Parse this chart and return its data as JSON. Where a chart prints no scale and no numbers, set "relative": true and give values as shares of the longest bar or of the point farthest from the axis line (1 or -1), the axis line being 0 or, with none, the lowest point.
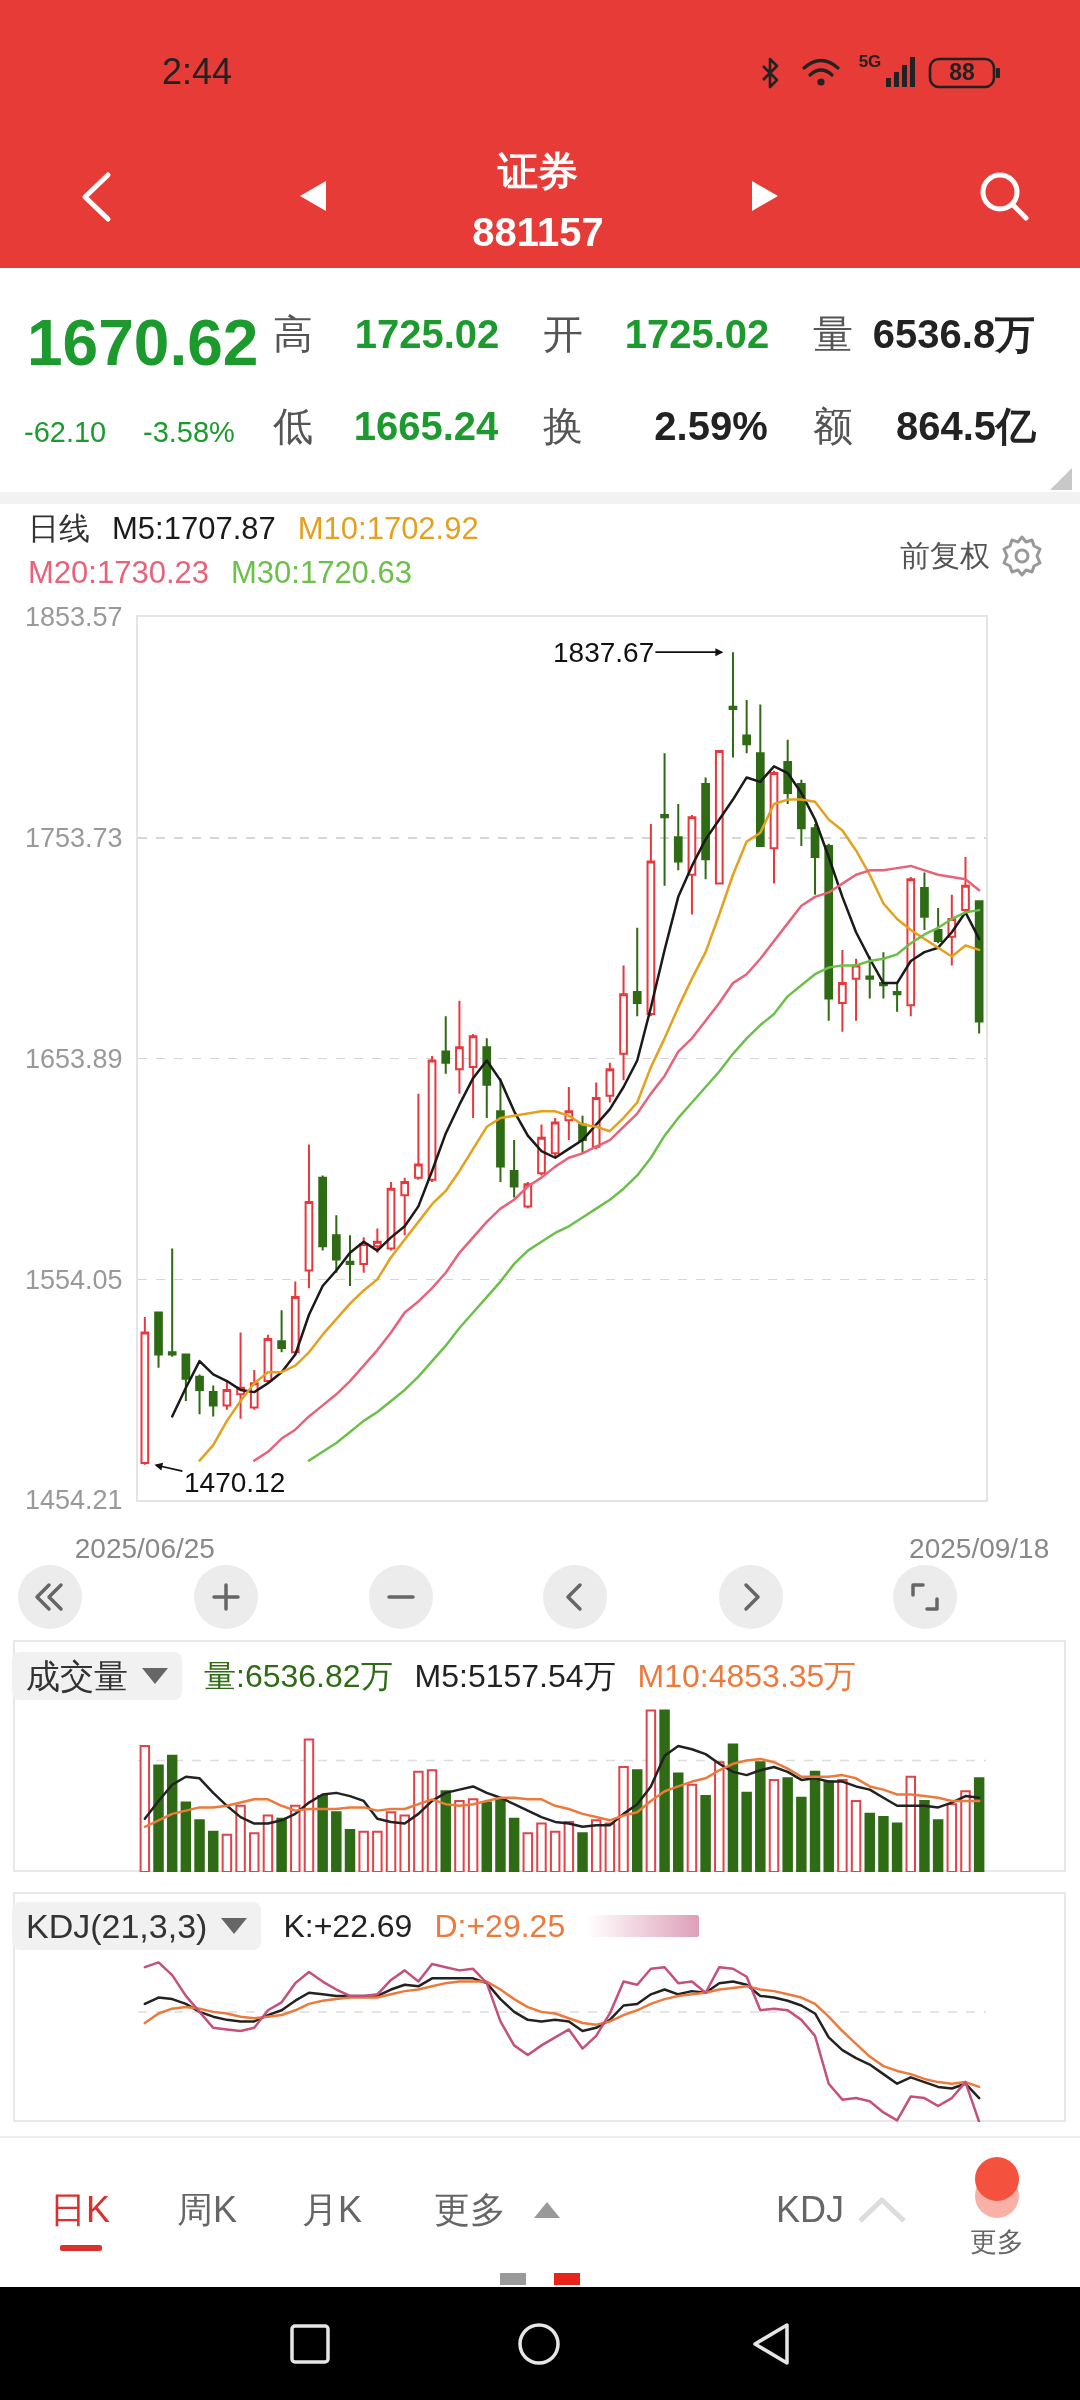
{
  "chart_data": [
    {
      "type": "other",
      "title": "证券",
      "subtitle": "881157",
      "annotations": [
        "2:44",
        "5G",
        "88",
        "1670.62",
        "-62.10",
        "-3.58%",
        "高",
        "1725.02",
        "开",
        "1725.02",
        "量",
        "6536.8万",
        "低",
        "1665.24",
        "换",
        "2.59%",
        "额",
        "864.5亿"
      ]
    },
    {
      "type": "candlestick",
      "legend_title": "日线",
      "legend": "top left",
      "grid": "y",
      "ylim": [
        1454.21,
        1853.57
      ],
      "yticks": [
        1454.21,
        1554.05,
        1653.89,
        1753.73,
        1853.57
      ],
      "categories": [
        "2025/06/25",
        null,
        null,
        null,
        null,
        null,
        null,
        null,
        null,
        null,
        null,
        null,
        null,
        null,
        null,
        null,
        null,
        null,
        null,
        null,
        null,
        null,
        null,
        null,
        null,
        null,
        null,
        null,
        null,
        null,
        null,
        null,
        null,
        null,
        null,
        null,
        null,
        null,
        null,
        null,
        null,
        null,
        null,
        null,
        null,
        null,
        null,
        null,
        null,
        null,
        null,
        null,
        null,
        null,
        null,
        null,
        null,
        null,
        null,
        null,
        null,
        "2025/09/18"
      ],
      "ohlc": [
        [
          1471,
          1537,
          1470.12,
          1530
        ],
        [
          1539,
          1539,
          1514,
          1520
        ],
        [
          1521,
          1568,
          1519,
          1520
        ],
        [
          1520,
          1520,
          1499,
          1509
        ],
        [
          1510,
          1511,
          1493,
          1504
        ],
        [
          1503,
          1506,
          1492,
          1497
        ],
        [
          1497,
          1508,
          1495,
          1504
        ],
        [
          1502,
          1530,
          1491,
          1505
        ],
        [
          1496,
          1513,
          1495,
          1507
        ],
        [
          1508,
          1529,
          1507,
          1527
        ],
        [
          1526,
          1540,
          1521,
          1523
        ],
        [
          1521,
          1553,
          1520,
          1546
        ],
        [
          1558,
          1615,
          1550,
          1589
        ],
        [
          1600,
          1601,
          1567,
          1569
        ],
        [
          1574,
          1583,
          1557,
          1563
        ],
        [
          1562,
          1574,
          1551,
          1561
        ],
        [
          1561,
          1573,
          1557,
          1570
        ],
        [
          1569,
          1577,
          1566,
          1571
        ],
        [
          1568,
          1598,
          1567,
          1595
        ],
        [
          1592,
          1600,
          1574,
          1598
        ],
        [
          1600,
          1638,
          1599,
          1606
        ],
        [
          1599,
          1655,
          1598,
          1653
        ],
        [
          1657,
          1673,
          1647,
          1652
        ],
        [
          1649,
          1680,
          1638,
          1659
        ],
        [
          1650,
          1665,
          1627,
          1664
        ],
        [
          1659,
          1663,
          1627,
          1642
        ],
        [
          1630,
          1645,
          1598,
          1605
        ],
        [
          1603,
          1617,
          1591,
          1596
        ],
        [
          1587,
          1598,
          1586,
          1597
        ],
        [
          1602,
          1624,
          1601,
          1618
        ],
        [
          1611,
          1627,
          1609,
          1625
        ],
        [
          1626,
          1641,
          1617,
          1630
        ],
        [
          1624,
          1628,
          1611,
          1617
        ],
        [
          1614,
          1643,
          1613,
          1636
        ],
        [
          1637,
          1652,
          1634,
          1649
        ],
        [
          1656,
          1696,
          1644,
          1683
        ],
        [
          1684,
          1713,
          1673,
          1679
        ],
        [
          1674,
          1760,
          1673,
          1743
        ],
        [
          1764,
          1792,
          1732,
          1763
        ],
        [
          1754,
          1769,
          1739,
          1743
        ],
        [
          1737,
          1764,
          1719,
          1763
        ],
        [
          1778,
          1781,
          1735,
          1744
        ],
        [
          1733,
          1793,
          1733,
          1793
        ],
        [
          1813,
          1837.67,
          1790,
          1812
        ],
        [
          1800,
          1816,
          1792,
          1796
        ],
        [
          1792,
          1814,
          1750,
          1750
        ],
        [
          1749,
          1784,
          1733,
          1783
        ],
        [
          1788,
          1798,
          1769,
          1774
        ],
        [
          1778,
          1780,
          1750,
          1758
        ],
        [
          1758,
          1760,
          1728,
          1745
        ],
        [
          1750,
          1751,
          1671,
          1681
        ],
        [
          1679,
          1703,
          1666,
          1688
        ],
        [
          1690,
          1699,
          1671,
          1696
        ],
        [
          1691,
          1700,
          1681,
          1690
        ],
        [
          1688,
          1702,
          1681,
          1687
        ],
        [
          1684,
          1688,
          1675,
          1683
        ],
        [
          1678,
          1736,
          1673,
          1735
        ],
        [
          1731,
          1738,
          1712,
          1718
        ],
        [
          1712,
          1722,
          1706,
          1707
        ],
        [
          1709,
          1728,
          1696,
          1717
        ],
        [
          1721,
          1745,
          1719,
          1732
        ],
        [
          1725.02,
          1725.02,
          1665.24,
          1670.62
        ]
      ],
      "colors": [
        "#e8383d",
        "#2e6b14",
        "#2e6b14",
        "#2e6b14",
        "#2e6b14",
        "#2e6b14",
        "#e8383d",
        "#e8383d",
        "#e8383d",
        "#e8383d",
        "#2e6b14",
        "#e8383d",
        "#e8383d",
        "#2e6b14",
        "#2e6b14",
        "#2e6b14",
        "#e8383d",
        "#e8383d",
        "#e8383d",
        "#e8383d",
        "#e8383d",
        "#e8383d",
        "#2e6b14",
        "#e8383d",
        "#e8383d",
        "#2e6b14",
        "#2e6b14",
        "#2e6b14",
        "#e8383d",
        "#e8383d",
        "#e8383d",
        "#e8383d",
        "#2e6b14",
        "#e8383d",
        "#e8383d",
        "#e8383d",
        "#2e6b14",
        "#e8383d",
        "#2e6b14",
        "#2e6b14",
        "#e8383d",
        "#2e6b14",
        "#e8383d",
        "#2e6b14",
        "#2e6b14",
        "#2e6b14",
        "#e8383d",
        "#2e6b14",
        "#2e6b14",
        "#2e6b14",
        "#2e6b14",
        "#e8383d",
        "#e8383d",
        "#2e6b14",
        "#2e6b14",
        "#2e6b14",
        "#e8383d",
        "#2e6b14",
        "#2e6b14",
        "#e8383d",
        "#e8383d",
        "#2e6b14"
      ],
      "series": [
        {
          "type": "line",
          "name": "M5:1707.87",
          "color": "#1a1a1a",
          "values": [
            null,
            null,
            1492,
            1505,
            1517,
            1511,
            1508,
            1504,
            1503,
            1507,
            1512,
            1520,
            1538,
            1551,
            1558,
            1566,
            1571,
            1567,
            1573,
            1578,
            1587,
            1603,
            1620,
            1633,
            1645,
            1653,
            1644,
            1630,
            1619,
            1612,
            1609,
            1613,
            1617,
            1624,
            1631,
            1641,
            1653,
            1677,
            1703,
            1727,
            1741,
            1753,
            1762,
            1771,
            1781,
            1779,
            1786,
            1783,
            1774,
            1762,
            1745,
            1727,
            1711,
            1699,
            1688,
            1688,
            1698,
            1702,
            1704,
            1711,
            1720,
            1708
          ]
        },
        {
          "type": "line",
          "name": "M10:1702.92",
          "color": "#e3a11e",
          "values": [
            null,
            null,
            null,
            null,
            1472,
            1479,
            1490,
            1499,
            1507,
            1512,
            1512,
            1515,
            1521,
            1529,
            1536,
            1543,
            1549,
            1554,
            1564,
            1572,
            1580,
            1588,
            1594,
            1603,
            1613,
            1623,
            1627,
            1628,
            1629,
            1630,
            1630,
            1628,
            1624,
            1623,
            1621,
            1627,
            1634,
            1650,
            1663,
            1677,
            1690,
            1702,
            1719,
            1737,
            1752,
            1756,
            1769,
            1771,
            1771,
            1770,
            1762,
            1757,
            1748,
            1737,
            1724,
            1717,
            1712,
            1708,
            1704,
            1700,
            1705,
            1703
          ]
        },
        {
          "type": "line",
          "name": "M20:1730.23",
          "color": "#e8627a",
          "values": [
            null,
            null,
            null,
            null,
            null,
            null,
            null,
            null,
            1472,
            1476,
            1482,
            1486,
            1492,
            1497,
            1502,
            1508,
            1515,
            1522,
            1530,
            1539,
            1544,
            1550,
            1557,
            1566,
            1573,
            1580,
            1586,
            1590,
            1596,
            1600,
            1605,
            1609,
            1611,
            1614,
            1617,
            1623,
            1629,
            1638,
            1646,
            1657,
            1663,
            1671,
            1679,
            1688,
            1692,
            1699,
            1707,
            1715,
            1723,
            1727,
            1729,
            1733,
            1737,
            1739,
            1739,
            1740,
            1741,
            1739,
            1737,
            1736,
            1735,
            1730
          ]
        },
        {
          "type": "line",
          "name": "M30:1720.63",
          "color": "#6cc04a",
          "values": [
            null,
            null,
            null,
            null,
            null,
            null,
            null,
            null,
            null,
            null,
            null,
            null,
            1472,
            1476,
            1480,
            1485,
            1490,
            1494,
            1499,
            1504,
            1510,
            1517,
            1524,
            1532,
            1539,
            1546,
            1553,
            1561,
            1567,
            1571,
            1575,
            1578,
            1582,
            1586,
            1590,
            1595,
            1601,
            1609,
            1619,
            1627,
            1634,
            1641,
            1648,
            1656,
            1663,
            1669,
            1674,
            1682,
            1687,
            1692,
            1695,
            1696,
            1696,
            1698,
            1699,
            1701,
            1706,
            1710,
            1713,
            1717,
            1720,
            1721
          ]
        }
      ],
      "annotations": [
        "前复权",
        "1837.67",
        "1470.12"
      ]
    },
    {
      "type": "bar",
      "title": "成交量",
      "relative": true,
      "legend": "top left",
      "categories": [
        null,
        null,
        null,
        null,
        null,
        null,
        null,
        null,
        null,
        null,
        null,
        null,
        null,
        null,
        null,
        null,
        null,
        null,
        null,
        null,
        null,
        null,
        null,
        null,
        null,
        null,
        null,
        null,
        null,
        null,
        null,
        null,
        null,
        null,
        null,
        null,
        null,
        null,
        null,
        null,
        null,
        null,
        null,
        null,
        null,
        null,
        null,
        null,
        null,
        null,
        null,
        null,
        null,
        null,
        null,
        null,
        null,
        null,
        null,
        null,
        null,
        null
      ],
      "series": [
        {
          "type": "bar",
          "name": "量:6536.82万",
          "color": "#2e6b14",
          "colors": [
            "#e0434a",
            "#2e6b14",
            "#2e6b14",
            "#2e6b14",
            "#2e6b14",
            "#2e6b14",
            "#e0434a",
            "#e0434a",
            "#e0434a",
            "#e0434a",
            "#2e6b14",
            "#e0434a",
            "#e0434a",
            "#2e6b14",
            "#2e6b14",
            "#2e6b14",
            "#e0434a",
            "#e0434a",
            "#e0434a",
            "#e0434a",
            "#e0434a",
            "#e0434a",
            "#2e6b14",
            "#e0434a",
            "#e0434a",
            "#2e6b14",
            "#2e6b14",
            "#2e6b14",
            "#e0434a",
            "#e0434a",
            "#e0434a",
            "#e0434a",
            "#2e6b14",
            "#e0434a",
            "#e0434a",
            "#e0434a",
            "#2e6b14",
            "#e0434a",
            "#2e6b14",
            "#2e6b14",
            "#e0434a",
            "#2e6b14",
            "#e0434a",
            "#2e6b14",
            "#2e6b14",
            "#2e6b14",
            "#e0434a",
            "#2e6b14",
            "#2e6b14",
            "#2e6b14",
            "#2e6b14",
            "#e0434a",
            "#e0434a",
            "#2e6b14",
            "#2e6b14",
            "#2e6b14",
            "#e0434a",
            "#2e6b14",
            "#2e6b14",
            "#e0434a",
            "#e0434a",
            "#2e6b14"
          ],
          "values": [
            0.78,
            0.66,
            0.72,
            0.43,
            0.32,
            0.25,
            0.23,
            0.41,
            0.24,
            0.35,
            0.33,
            0.41,
            0.82,
            0.47,
            0.37,
            0.26,
            0.25,
            0.25,
            0.37,
            0.35,
            0.62,
            0.63,
            0.5,
            0.44,
            0.45,
            0.43,
            0.45,
            0.33,
            0.24,
            0.3,
            0.25,
            0.31,
            0.24,
            0.32,
            0.3,
            0.65,
            0.63,
            1,
            1,
            0.61,
            0.54,
            0.47,
            0.68,
            0.79,
            0.49,
            0.68,
            0.57,
            0.58,
            0.46,
            0.62,
            0.56,
            0.57,
            0.44,
            0.36,
            0.34,
            0.3,
            0.59,
            0.44,
            0.32,
            0.42,
            0.5,
            0.58
          ]
        },
        {
          "type": "line",
          "name": "M5:5157.54万",
          "color": "#222222",
          "values": [
            0.33,
            0.44,
            0.54,
            0.59,
            0.58,
            0.49,
            0.41,
            0.34,
            0.3,
            0.3,
            0.32,
            0.36,
            0.43,
            0.48,
            0.49,
            0.47,
            0.44,
            0.33,
            0.31,
            0.3,
            0.36,
            0.44,
            0.49,
            0.51,
            0.53,
            0.49,
            0.46,
            0.42,
            0.38,
            0.34,
            0.31,
            0.3,
            0.28,
            0.29,
            0.29,
            0.36,
            0.42,
            0.53,
            0.72,
            0.78,
            0.76,
            0.73,
            0.67,
            0.62,
            0.6,
            0.63,
            0.65,
            0.62,
            0.57,
            0.58,
            0.56,
            0.56,
            0.53,
            0.51,
            0.46,
            0.41,
            0.41,
            0.41,
            0.4,
            0.43,
            0.47,
            0.46
          ]
        },
        {
          "type": "line",
          "name": "M10:4853.35万",
          "color": "#ec7a3c",
          "values": [
            0.28,
            0.32,
            0.36,
            0.38,
            0.4,
            0.4,
            0.41,
            0.43,
            0.45,
            0.45,
            0.41,
            0.38,
            0.39,
            0.39,
            0.39,
            0.4,
            0.4,
            0.38,
            0.39,
            0.39,
            0.42,
            0.45,
            0.42,
            0.41,
            0.42,
            0.44,
            0.46,
            0.46,
            0.45,
            0.45,
            0.41,
            0.39,
            0.36,
            0.34,
            0.32,
            0.35,
            0.37,
            0.44,
            0.5,
            0.53,
            0.56,
            0.58,
            0.63,
            0.67,
            0.69,
            0.7,
            0.68,
            0.64,
            0.59,
            0.59,
            0.59,
            0.6,
            0.58,
            0.53,
            0.51,
            0.48,
            0.48,
            0.47,
            0.46,
            0.44,
            0.44,
            0.44
          ]
        }
      ],
      "ref_lines": [
        {
          "axis": "y",
          "value": 0.69,
          "color": "#dddddd",
          "line_style": "dashed"
        }
      ]
    },
    {
      "type": "line",
      "title": "KDJ(21,3,3)",
      "relative": true,
      "legend": "top left",
      "categories": [
        null,
        null,
        null,
        null,
        null,
        null,
        null,
        null,
        null,
        null,
        null,
        null,
        null,
        null,
        null,
        null,
        null,
        null,
        null,
        null,
        null,
        null,
        null,
        null,
        null,
        null,
        null,
        null,
        null,
        null,
        null,
        null,
        null,
        null,
        null,
        null,
        null,
        null,
        null,
        null,
        null,
        null,
        null,
        null,
        null,
        null,
        null,
        null,
        null,
        null,
        null,
        null,
        null,
        null,
        null,
        null,
        null,
        null,
        null,
        null,
        null,
        null
      ],
      "series": [
        {
          "name": "K:+22.69",
          "color": "#222222",
          "values": [
            0.74,
            0.78,
            0.77,
            0.74,
            0.69,
            0.66,
            0.64,
            0.63,
            0.63,
            0.67,
            0.7,
            0.76,
            0.81,
            0.8,
            0.79,
            0.79,
            0.79,
            0.79,
            0.83,
            0.86,
            0.85,
            0.9,
            0.9,
            0.9,
            0.9,
            0.87,
            0.77,
            0.69,
            0.64,
            0.63,
            0.64,
            0.63,
            0.57,
            0.59,
            0.64,
            0.73,
            0.74,
            0.8,
            0.83,
            0.8,
            0.82,
            0.81,
            0.87,
            0.88,
            0.86,
            0.79,
            0.78,
            0.76,
            0.73,
            0.68,
            0.53,
            0.45,
            0.4,
            0.36,
            0.3,
            0.24,
            0.28,
            0.25,
            0.22,
            0.21,
            0.24,
            0.15
          ]
        },
        {
          "name": "D:+29.25",
          "color": "#ec7a3c",
          "values": [
            0.62,
            0.68,
            0.71,
            0.72,
            0.71,
            0.69,
            0.68,
            0.66,
            0.65,
            0.66,
            0.67,
            0.7,
            0.74,
            0.76,
            0.77,
            0.78,
            0.78,
            0.78,
            0.8,
            0.82,
            0.83,
            0.85,
            0.87,
            0.88,
            0.88,
            0.88,
            0.83,
            0.77,
            0.72,
            0.69,
            0.68,
            0.65,
            0.62,
            0.61,
            0.63,
            0.67,
            0.7,
            0.74,
            0.77,
            0.79,
            0.8,
            0.81,
            0.83,
            0.84,
            0.85,
            0.83,
            0.82,
            0.8,
            0.78,
            0.74,
            0.66,
            0.57,
            0.49,
            0.41,
            0.35,
            0.32,
            0.3,
            0.27,
            0.25,
            0.24,
            0.25,
            0.22
          ]
        },
        {
          "color": "#c4507e",
          "values": [
            0.97,
            1,
            0.92,
            0.79,
            0.69,
            0.59,
            0.58,
            0.57,
            0.59,
            0.7,
            0.75,
            0.87,
            0.94,
            0.88,
            0.83,
            0.79,
            0.79,
            0.8,
            0.89,
            0.95,
            0.88,
            0.99,
            0.97,
            0.95,
            0.96,
            0.87,
            0.63,
            0.48,
            0.42,
            0.48,
            0.53,
            0.58,
            0.46,
            0.54,
            0.68,
            0.88,
            0.86,
            0.96,
            0.97,
            0.87,
            0.88,
            0.81,
            0.97,
            0.96,
            0.91,
            0.7,
            0.71,
            0.7,
            0.64,
            0.54,
            0.24,
            0.14,
            0.15,
            0.13,
            0.06,
            0.01,
            0.16,
            0.15,
            0.1,
            0.15,
            0.25,
            0
          ]
        }
      ],
      "ref_lines": [
        {
          "axis": "y",
          "value": 0.69,
          "color": "#dddddd",
          "line_style": "dashed"
        }
      ]
    },
    {
      "type": "other",
      "annotations": [
        "日K",
        "周K",
        "月K",
        "更多",
        "KDJ",
        "更多"
      ]
    }
  ]
}
